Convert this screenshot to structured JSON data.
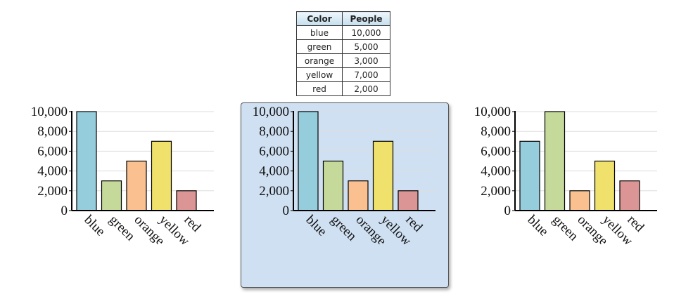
{
  "table": {
    "headers": [
      "Color",
      "People"
    ],
    "rows": [
      {
        "color": "blue",
        "people": "10,000"
      },
      {
        "color": "green",
        "people": "5,000"
      },
      {
        "color": "orange",
        "people": "3,000"
      },
      {
        "color": "yellow",
        "people": "7,000"
      },
      {
        "color": "red",
        "people": "2,000"
      }
    ]
  },
  "chart_data": [
    {
      "type": "bar",
      "categories": [
        "blue",
        "green",
        "orange",
        "yellow",
        "red"
      ],
      "values": [
        10000,
        3000,
        5000,
        7000,
        2000
      ],
      "colors": [
        "#96cddc",
        "#c4d99a",
        "#fbc08f",
        "#f0e06c",
        "#dc9595"
      ],
      "yticks": [
        "0",
        "2,000",
        "4,000",
        "6,000",
        "8,000",
        "10,000"
      ],
      "ylim": [
        0,
        10000
      ],
      "grid": true,
      "selected": false
    },
    {
      "type": "bar",
      "categories": [
        "blue",
        "green",
        "orange",
        "yellow",
        "red"
      ],
      "values": [
        10000,
        5000,
        3000,
        7000,
        2000
      ],
      "colors": [
        "#96cddc",
        "#c4d99a",
        "#fbc08f",
        "#f0e06c",
        "#dc9595"
      ],
      "yticks": [
        "0",
        "2,000",
        "4,000",
        "6,000",
        "8,000",
        "10,000"
      ],
      "ylim": [
        0,
        10000
      ],
      "grid": true,
      "selected": true
    },
    {
      "type": "bar",
      "categories": [
        "blue",
        "green",
        "orange",
        "yellow",
        "red"
      ],
      "values": [
        7000,
        10000,
        2000,
        5000,
        3000
      ],
      "colors": [
        "#96cddc",
        "#c4d99a",
        "#fbc08f",
        "#f0e06c",
        "#dc9595"
      ],
      "yticks": [
        "0",
        "2,000",
        "4,000",
        "6,000",
        "8,000",
        "10,000"
      ],
      "ylim": [
        0,
        10000
      ],
      "grid": true,
      "selected": false
    }
  ]
}
